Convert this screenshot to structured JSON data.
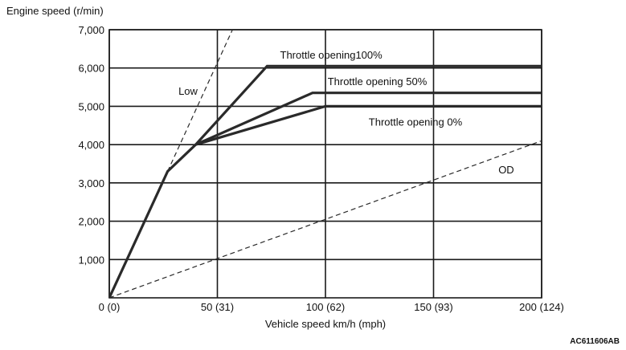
{
  "chart_data": {
    "type": "line",
    "title": "",
    "ylabel": "Engine speed (r/min)",
    "xlabel": "Vehicle speed  km/h (mph)",
    "xlim": [
      0,
      200
    ],
    "ylim": [
      0,
      7000
    ],
    "grid": true,
    "x_ticks": [
      {
        "value": 0,
        "label": "0 (0)"
      },
      {
        "value": 50,
        "label": "50 (31)"
      },
      {
        "value": 100,
        "label": "100 (62)"
      },
      {
        "value": 150,
        "label": "150 (93)"
      },
      {
        "value": 200,
        "label": "200 (124)"
      }
    ],
    "y_ticks": [
      {
        "value": 1000,
        "label": "1,000"
      },
      {
        "value": 2000,
        "label": "2,000"
      },
      {
        "value": 3000,
        "label": "3,000"
      },
      {
        "value": 4000,
        "label": "4,000"
      },
      {
        "value": 5000,
        "label": "5,000"
      },
      {
        "value": 6000,
        "label": "6,000"
      },
      {
        "value": 7000,
        "label": "7,000"
      }
    ],
    "series": [
      {
        "name": "Low",
        "style": "dashed",
        "points": [
          [
            27,
            3300
          ],
          [
            57,
            7000
          ]
        ]
      },
      {
        "name": "OD",
        "style": "dashed",
        "points": [
          [
            0,
            0
          ],
          [
            200,
            4100
          ]
        ]
      },
      {
        "name": "Throttle opening 0%",
        "style": "thick",
        "points": [
          [
            0,
            0
          ],
          [
            27,
            3300
          ],
          [
            40,
            4000
          ],
          [
            100,
            5000
          ],
          [
            200,
            5000
          ]
        ]
      },
      {
        "name": "Throttle opening 50%",
        "style": "thick",
        "points": [
          [
            40,
            4000
          ],
          [
            94,
            5350
          ],
          [
            200,
            5350
          ]
        ]
      },
      {
        "name": "Throttle opening 100%",
        "style": "thick",
        "points": [
          [
            40,
            4000
          ],
          [
            73,
            6050
          ],
          [
            200,
            6050
          ]
        ]
      }
    ],
    "annotations": [
      {
        "id": "low",
        "text": "Low",
        "at": [
          32,
          5300
        ]
      },
      {
        "id": "od",
        "text": "OD",
        "at": [
          180,
          3250
        ]
      },
      {
        "id": "t0",
        "text": "Throttle opening 0%",
        "at": [
          120,
          4500
        ]
      },
      {
        "id": "t50",
        "text": "Throttle opening 50%",
        "at": [
          101,
          5550
        ]
      },
      {
        "id": "t100",
        "text": "Throttle opening100%",
        "at": [
          79,
          6250
        ]
      }
    ]
  },
  "figure_id": "AC611606AB",
  "colors": {
    "line": "#2a2a2a",
    "grid": "#1a1a1a",
    "background": "#ffffff"
  }
}
